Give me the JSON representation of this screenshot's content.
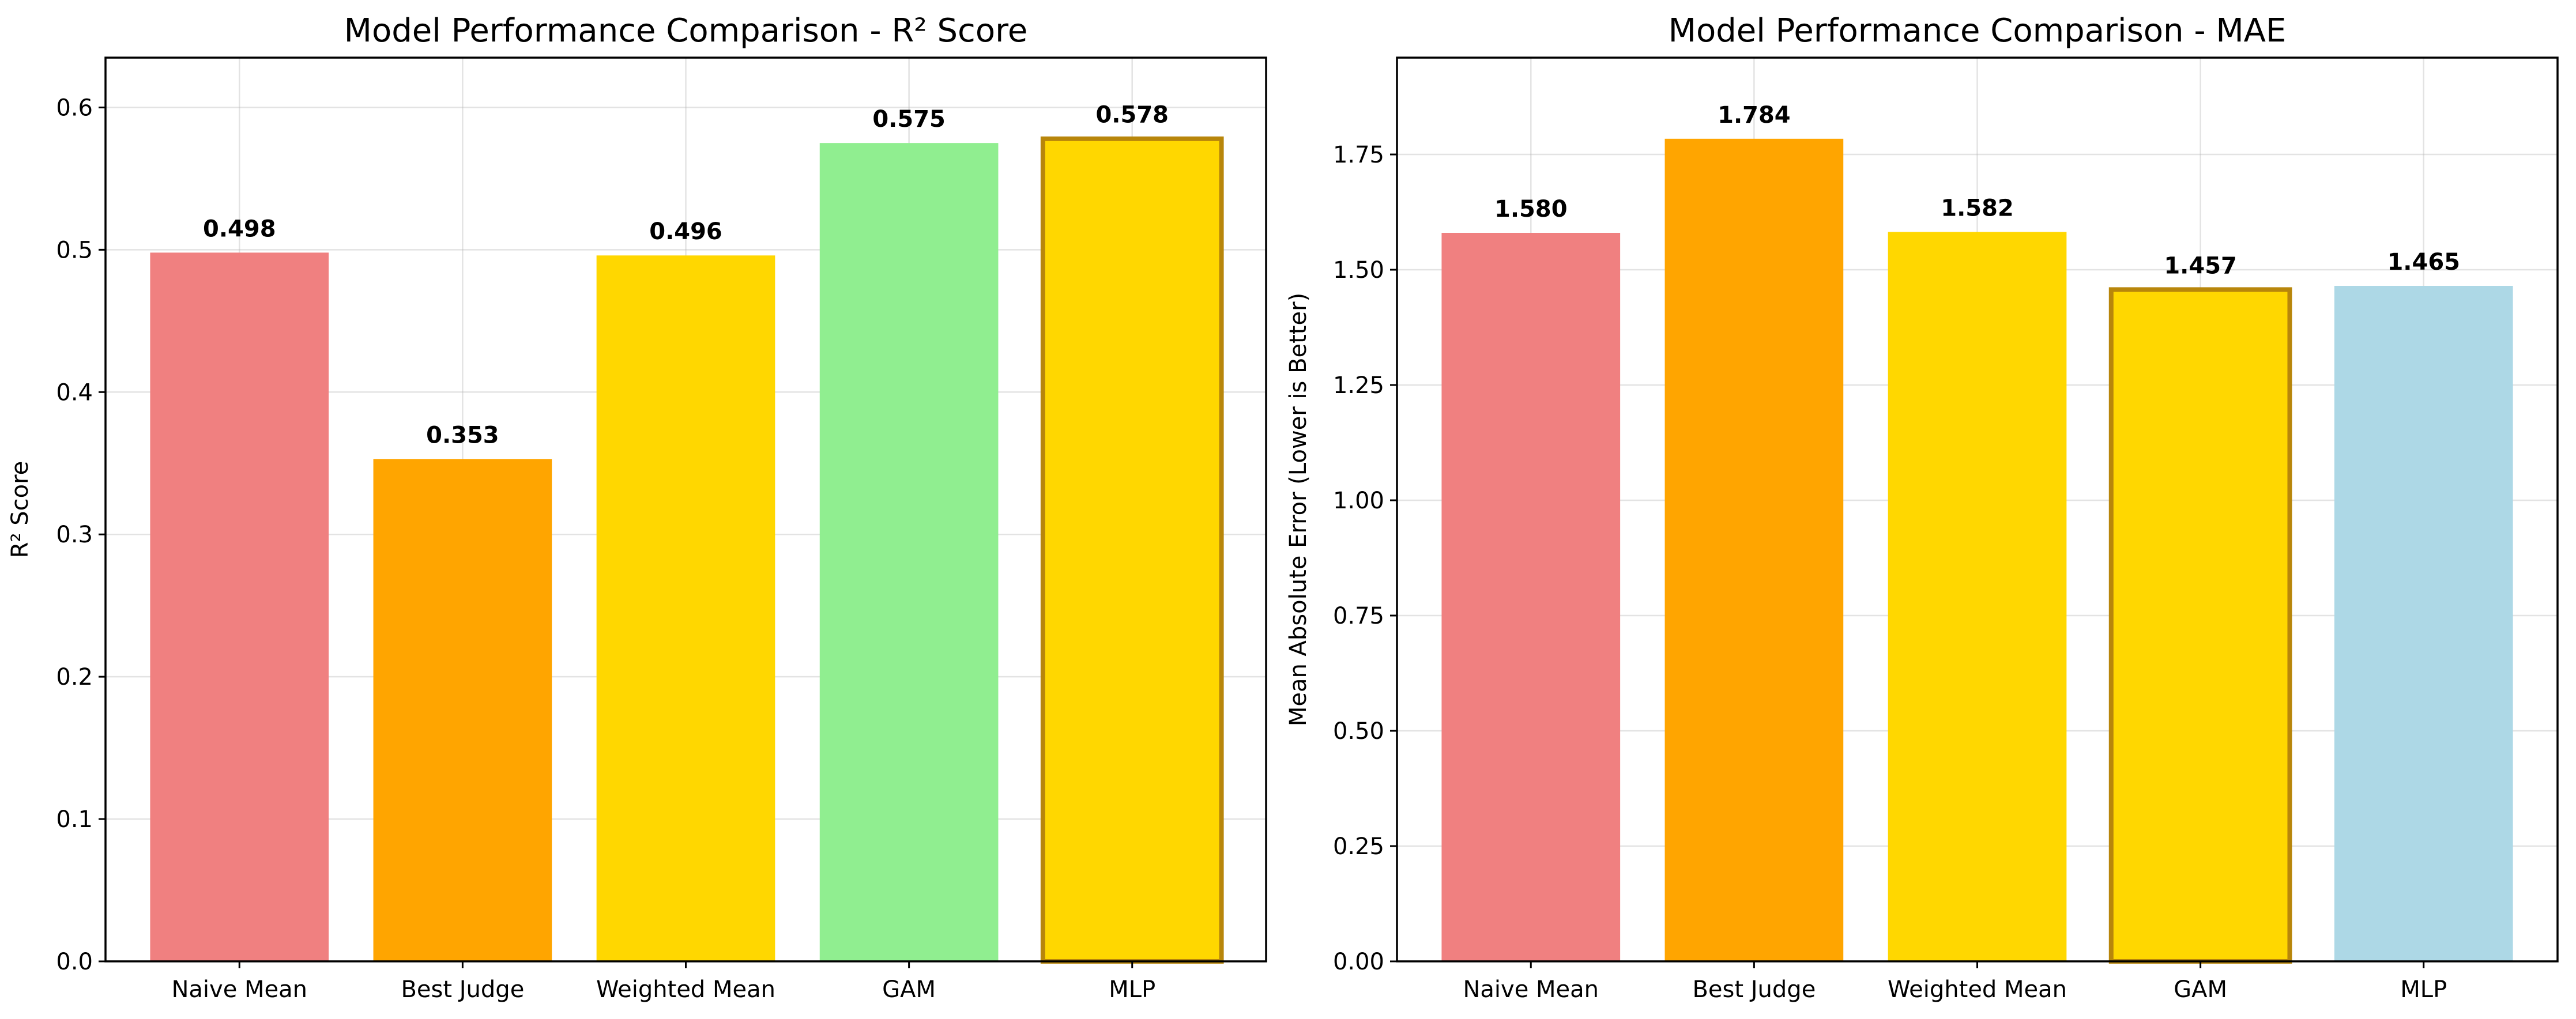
{
  "chart_data": [
    {
      "type": "bar",
      "title": "Model Performance Comparison - R² Score",
      "xlabel": "",
      "ylabel": "R² Score",
      "categories": [
        "Naive Mean",
        "Best Judge",
        "Weighted Mean",
        "GAM",
        "MLP"
      ],
      "values": [
        0.498,
        0.353,
        0.496,
        0.575,
        0.578
      ],
      "value_labels": [
        "0.498",
        "0.353",
        "0.496",
        "0.575",
        "0.578"
      ],
      "colors": [
        "#f08080",
        "#ffa500",
        "#ffd700",
        "#90ee90",
        "#ffd700"
      ],
      "highlighted": "MLP",
      "highlight_edge_color": "#b8860b",
      "ylim": [
        0,
        0.635
      ],
      "yticks": [
        0.0,
        0.1,
        0.2,
        0.3,
        0.4,
        0.5,
        0.6
      ],
      "ytick_labels": [
        "0.0",
        "0.1",
        "0.2",
        "0.3",
        "0.4",
        "0.5",
        "0.6"
      ],
      "grid": true,
      "legend": "none"
    },
    {
      "type": "bar",
      "title": "Model Performance Comparison - MAE",
      "xlabel": "",
      "ylabel": "Mean Absolute Error (Lower is Better)",
      "categories": [
        "Naive Mean",
        "Best Judge",
        "Weighted Mean",
        "GAM",
        "MLP"
      ],
      "values": [
        1.58,
        1.784,
        1.582,
        1.457,
        1.465
      ],
      "value_labels": [
        "1.580",
        "1.784",
        "1.582",
        "1.457",
        "1.465"
      ],
      "colors": [
        "#f08080",
        "#ffa500",
        "#ffd700",
        "#ffd700",
        "#add8e6"
      ],
      "highlighted": "GAM",
      "highlight_edge_color": "#b8860b",
      "ylim": [
        0,
        1.96
      ],
      "yticks": [
        0.0,
        0.25,
        0.5,
        0.75,
        1.0,
        1.25,
        1.5,
        1.75
      ],
      "ytick_labels": [
        "0.00",
        "0.25",
        "0.50",
        "0.75",
        "1.00",
        "1.25",
        "1.50",
        "1.75"
      ],
      "grid": true,
      "legend": "none"
    }
  ]
}
